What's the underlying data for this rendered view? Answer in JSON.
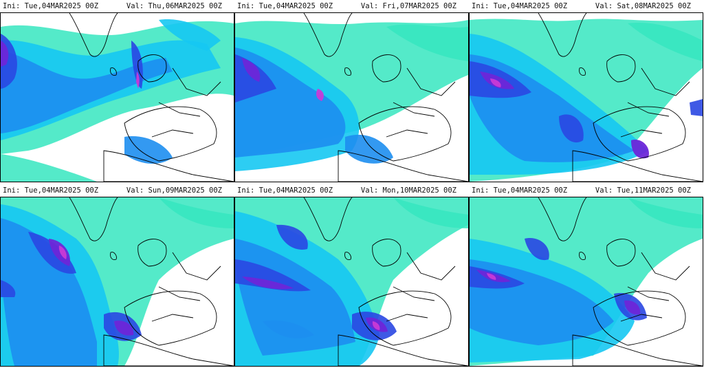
{
  "panels": [
    {
      "ini": "Ini: Tue,04MAR2025  00Z",
      "val": "Val: Thu,06MAR2025  00Z"
    },
    {
      "ini": "Ini: Tue,04MAR2025  00Z",
      "val": "Val: Fri,07MAR2025  00Z"
    },
    {
      "ini": "Ini: Tue,04MAR2025  00Z",
      "val": "Val: Sat,08MAR2025  00Z"
    },
    {
      "ini": "Ini: Tue,04MAR2025  00Z",
      "val": "Val: Sun,09MAR2025  00Z"
    },
    {
      "ini": "Ini: Tue,04MAR2025  00Z",
      "val": "Val: Mon,10MAR2025  00Z"
    },
    {
      "ini": "Ini: Tue,04MAR2025  00Z",
      "val": "Val: Tue,11MAR2025  00Z"
    }
  ],
  "colors": {
    "light": "#36e6c0",
    "cyan": "#16c8f2",
    "mid": "#1d8ef0",
    "deep": "#2a47e2",
    "core": "#6d26d8",
    "peak": "#c93ad6",
    "land_outline": "#000000"
  }
}
